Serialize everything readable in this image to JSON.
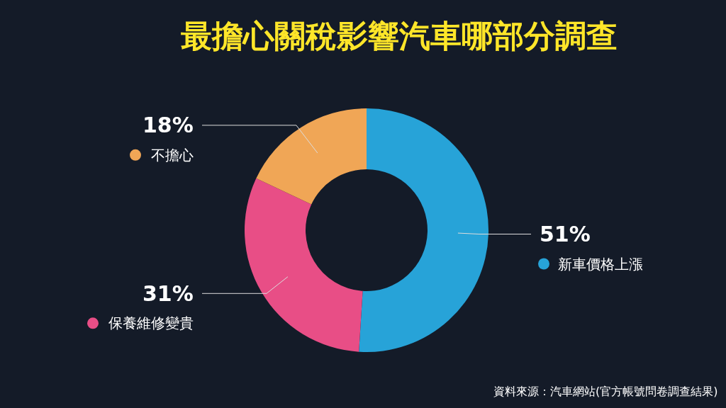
{
  "chart_data": {
    "type": "donut",
    "title": "最擔心關稅影響汽車哪部分調查",
    "categories": [
      "新車價格上漲",
      "保養維修變貴",
      "不擔心"
    ],
    "values": [
      51,
      31,
      18
    ],
    "value_labels": [
      "51%",
      "31%",
      "18%"
    ],
    "legend": "right",
    "colors": [
      "#27a3d8",
      "#e84e86",
      "#f0a656"
    ],
    "annotations": [
      "資料來源：汽車網站(官方帳號問卷調查結果)"
    ]
  }
}
